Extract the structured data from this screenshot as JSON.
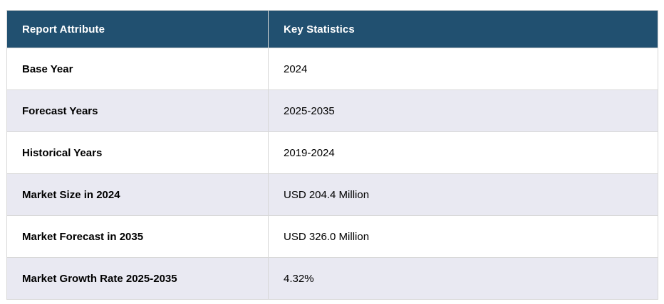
{
  "table": {
    "columns": [
      {
        "label": "Report Attribute"
      },
      {
        "label": "Key Statistics"
      }
    ],
    "rows": [
      {
        "attribute": "Base Year",
        "value": "2024"
      },
      {
        "attribute": "Forecast Years",
        "value": "2025-2035"
      },
      {
        "attribute": "Historical Years",
        "value": "2019-2024"
      },
      {
        "attribute": "Market Size in 2024",
        "value": "USD 204.4 Million"
      },
      {
        "attribute": "Market Forecast in 2035",
        "value": "USD 326.0 Million"
      },
      {
        "attribute": "Market Growth Rate 2025-2035",
        "value": "4.32%"
      }
    ],
    "colors": {
      "header_bg": "#215070",
      "header_text": "#ffffff",
      "row_bg": "#ffffff",
      "row_alt_bg": "#e9e9f2",
      "border": "#d8d8d8",
      "body_text": "#000000"
    }
  }
}
